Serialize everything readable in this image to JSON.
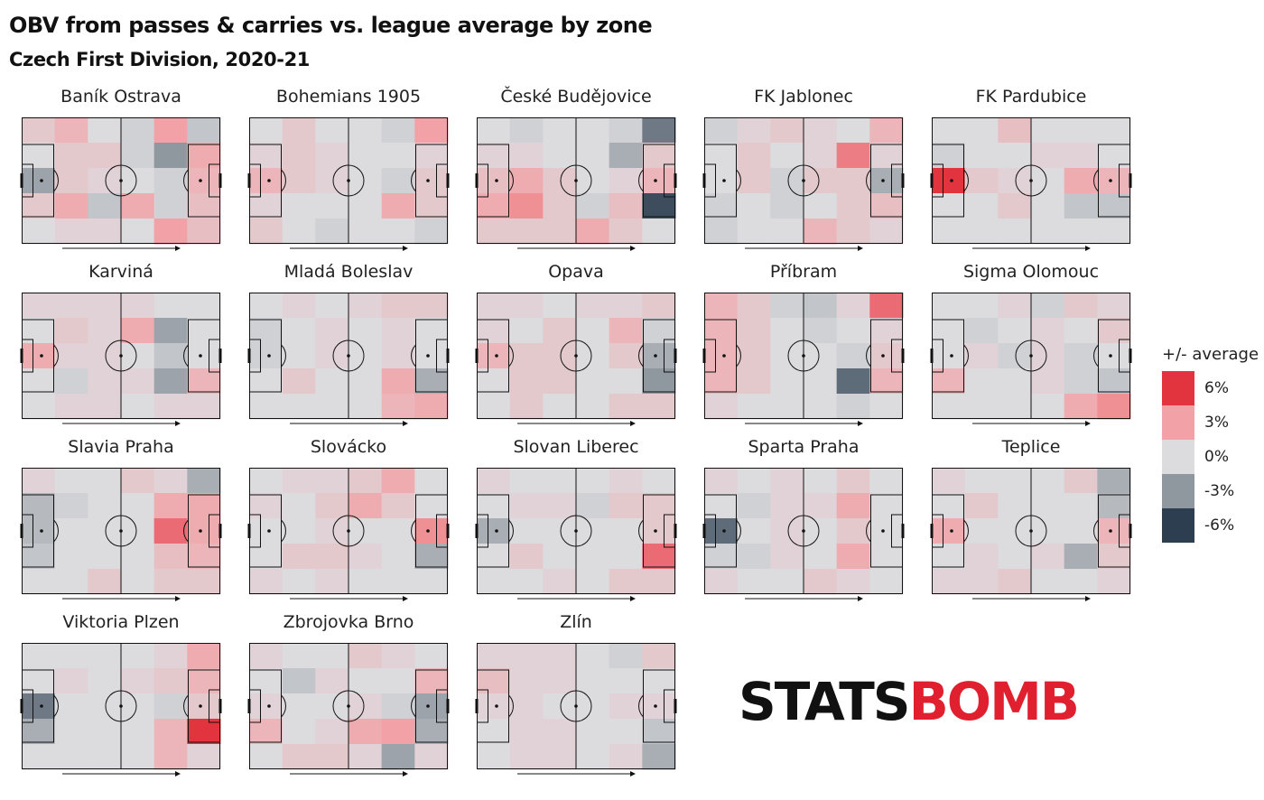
{
  "header": {
    "title": "OBV from passes & carries vs. league average by zone",
    "subtitle": "Czech First Division, 2020-21"
  },
  "legend": {
    "title": "+/- average",
    "items": [
      {
        "label": "6%",
        "value": 0.06,
        "color": "#e2343f"
      },
      {
        "label": "3%",
        "value": 0.03,
        "color": "#f2a2a6"
      },
      {
        "label": "0%",
        "value": 0.0,
        "color": "#dcdcdf"
      },
      {
        "label": "-3%",
        "value": -0.03,
        "color": "#8f979f"
      },
      {
        "label": "-6%",
        "value": -0.06,
        "color": "#2c3e50"
      }
    ]
  },
  "logo": {
    "part1": "STATS",
    "part2": "BOMB"
  },
  "colors": {
    "positive": "#e2343f",
    "neutral": "#dcdcdf",
    "negative": "#2c3e50"
  },
  "chart_data": {
    "type": "heatmap",
    "title": "OBV from passes & carries vs. league average by zone",
    "subtitle": "Czech First Division, 2020-21",
    "zone_grid": {
      "columns": 6,
      "rows": 5
    },
    "value_unit": "percent vs league average",
    "color_range": [
      -6,
      6
    ],
    "teams": [
      {
        "name": "Baník Ostrava",
        "zones": [
          [
            1,
            2,
            0,
            -0.5,
            3,
            -1
          ],
          [
            0,
            1,
            1,
            -0.5,
            -3,
            2.5
          ],
          [
            -2.5,
            1,
            0.5,
            0,
            -0.5,
            2
          ],
          [
            1,
            2.5,
            -1,
            2.5,
            -0.5,
            1.5
          ],
          [
            0,
            0.5,
            0.5,
            0,
            3,
            1.5
          ]
        ]
      },
      {
        "name": "Bohemians 1905",
        "zones": [
          [
            0,
            1,
            0,
            0,
            -0.5,
            3
          ],
          [
            0.5,
            1,
            0.5,
            0,
            0,
            0.5
          ],
          [
            2,
            1,
            0.5,
            0,
            -0.5,
            1
          ],
          [
            0.5,
            0,
            0,
            0,
            2.5,
            1
          ],
          [
            1,
            0,
            -0.5,
            0,
            0,
            -0.5
          ]
        ]
      },
      {
        "name": "České Budějovice",
        "zones": [
          [
            0,
            -0.5,
            0,
            0,
            -0.5,
            -4
          ],
          [
            0.5,
            0.5,
            0,
            0,
            -2,
            1
          ],
          [
            1.5,
            2.5,
            1,
            0,
            0.5,
            2
          ],
          [
            2.5,
            3.5,
            1,
            -0.5,
            1.5,
            -5.5
          ],
          [
            1,
            1,
            1,
            2.5,
            1,
            0
          ]
        ]
      },
      {
        "name": "FK Jablonec",
        "zones": [
          [
            -0.5,
            0.5,
            1,
            0.5,
            0,
            2
          ],
          [
            0,
            1,
            0,
            0.5,
            4,
            0.5
          ],
          [
            0,
            1,
            -0.5,
            1,
            1,
            -2
          ],
          [
            -0.5,
            0,
            -0.5,
            0,
            1,
            1.5
          ],
          [
            -0.5,
            0,
            0,
            2,
            1,
            0.5
          ]
        ]
      },
      {
        "name": "FK Pardubice",
        "zones": [
          [
            0,
            0,
            1.5,
            0,
            0,
            0
          ],
          [
            -0.5,
            0,
            0,
            0.5,
            0.5,
            0
          ],
          [
            6,
            1,
            0.5,
            0,
            2.5,
            2
          ],
          [
            0,
            0,
            1,
            0,
            -1,
            -1
          ],
          [
            0,
            0,
            0,
            0,
            0,
            0
          ]
        ]
      },
      {
        "name": "Karviná",
        "zones": [
          [
            0.5,
            0.5,
            0.5,
            0.5,
            0,
            0
          ],
          [
            0,
            1,
            0.5,
            2.5,
            -2.5,
            0
          ],
          [
            2.5,
            0.5,
            0.5,
            0,
            -1,
            0
          ],
          [
            0,
            -0.5,
            0.5,
            0.5,
            -2.5,
            2
          ],
          [
            0,
            0.5,
            0.5,
            0,
            0.5,
            0.5
          ]
        ]
      },
      {
        "name": "Mladá Boleslav",
        "zones": [
          [
            0,
            0.5,
            0,
            0.5,
            1,
            1
          ],
          [
            -0.5,
            0,
            0.5,
            0,
            0.5,
            0
          ],
          [
            -0.5,
            0,
            0.5,
            0,
            0.5,
            0
          ],
          [
            0,
            1,
            0,
            0,
            2.5,
            -2
          ],
          [
            0,
            0,
            0,
            0,
            2,
            2.5
          ]
        ]
      },
      {
        "name": "Opava",
        "zones": [
          [
            0.5,
            0.5,
            0,
            0.5,
            0.5,
            1
          ],
          [
            0.5,
            0,
            1,
            0,
            2,
            -0.5
          ],
          [
            2,
            1,
            1,
            0,
            1,
            -2
          ],
          [
            0,
            1,
            1,
            0,
            0,
            -3
          ],
          [
            0,
            1,
            0,
            0,
            1,
            1
          ]
        ]
      },
      {
        "name": "Příbram",
        "zones": [
          [
            2,
            1,
            -0.5,
            -1,
            0.5,
            4.5
          ],
          [
            2,
            1,
            0,
            -0.5,
            0,
            0.5
          ],
          [
            2,
            1,
            0,
            0,
            -0.5,
            1
          ],
          [
            2,
            1,
            0,
            0,
            -4.5,
            2
          ],
          [
            0.5,
            0,
            0,
            0,
            -0.5,
            0
          ]
        ]
      },
      {
        "name": "Sigma Olomouc",
        "zones": [
          [
            0,
            0,
            0.5,
            -0.5,
            1,
            0.5
          ],
          [
            0,
            -0.5,
            0,
            0.5,
            0,
            1
          ],
          [
            0,
            0.5,
            -0.5,
            0.5,
            -0.5,
            0
          ],
          [
            2,
            0,
            0,
            0.5,
            -0.5,
            -1
          ],
          [
            0,
            0,
            0,
            0,
            2.5,
            3.5
          ]
        ]
      },
      {
        "name": "Slavia Praha",
        "zones": [
          [
            0.5,
            0,
            0,
            1,
            0.5,
            -2
          ],
          [
            -1.5,
            -0.5,
            0,
            0,
            2.5,
            2.5
          ],
          [
            -1.5,
            0,
            0,
            0,
            4.5,
            2.5
          ],
          [
            -1,
            0,
            0,
            0,
            1.5,
            2
          ],
          [
            0,
            0,
            1,
            0,
            1,
            1
          ]
        ]
      },
      {
        "name": "Slovácko",
        "zones": [
          [
            0,
            0.5,
            0.5,
            1,
            2.5,
            0
          ],
          [
            0.5,
            0,
            1,
            2.5,
            1,
            0
          ],
          [
            0,
            0,
            0.5,
            0,
            0,
            3.5
          ],
          [
            0,
            1,
            1,
            0.5,
            0,
            -2
          ],
          [
            0.5,
            0,
            0.5,
            0,
            0,
            0
          ]
        ]
      },
      {
        "name": "Slovan Liberec",
        "zones": [
          [
            0.5,
            0,
            0,
            0,
            0.5,
            0
          ],
          [
            0,
            0.5,
            0.5,
            -0.5,
            1,
            1
          ],
          [
            -2,
            0,
            0,
            0,
            0,
            1
          ],
          [
            0,
            1,
            0,
            0,
            0,
            4.5
          ],
          [
            0,
            0,
            0.5,
            0,
            1,
            1
          ]
        ]
      },
      {
        "name": "Sparta Praha",
        "zones": [
          [
            0.5,
            0,
            0.5,
            0,
            1,
            0
          ],
          [
            0,
            -0.5,
            0.5,
            0.5,
            2.5,
            0
          ],
          [
            -4.5,
            0,
            0.5,
            0,
            1,
            0
          ],
          [
            -0.5,
            -0.5,
            0.5,
            0,
            2.5,
            0
          ],
          [
            0.5,
            0,
            0,
            1,
            0.5,
            0
          ]
        ]
      },
      {
        "name": "Teplice",
        "zones": [
          [
            0.5,
            0,
            0,
            0,
            1,
            -2
          ],
          [
            0,
            1,
            0,
            0,
            0,
            -1.5
          ],
          [
            2.5,
            0,
            0,
            0,
            0,
            2
          ],
          [
            0,
            0.5,
            0,
            0.5,
            -2,
            1
          ],
          [
            0.5,
            0.5,
            1,
            0,
            0,
            0.5
          ]
        ]
      },
      {
        "name": "Viktoria Plzen",
        "zones": [
          [
            0,
            0,
            0,
            0,
            0.5,
            2.5
          ],
          [
            0,
            0.5,
            0,
            0.5,
            1,
            2
          ],
          [
            -4,
            0,
            0,
            0,
            -0.5,
            1
          ],
          [
            -2,
            0,
            0,
            0,
            2,
            6
          ],
          [
            0,
            0,
            0,
            0,
            2,
            0.5
          ]
        ]
      },
      {
        "name": "Zbrojovka Brno",
        "zones": [
          [
            0.5,
            0,
            0,
            1,
            0.5,
            0
          ],
          [
            0,
            -1,
            0.5,
            0,
            0,
            2
          ],
          [
            0.5,
            0,
            0,
            0.5,
            -0.5,
            -2.5
          ],
          [
            2,
            0,
            0.5,
            2.5,
            3,
            -2
          ],
          [
            0,
            1,
            1,
            0.5,
            -2.5,
            0.5
          ]
        ]
      },
      {
        "name": "Zlín",
        "zones": [
          [
            0.5,
            0.5,
            0.5,
            0,
            -0.5,
            1
          ],
          [
            1.5,
            0.5,
            0.5,
            0,
            0,
            0
          ],
          [
            0.5,
            0.5,
            0,
            0,
            0.5,
            0.5
          ],
          [
            0,
            0.5,
            0.5,
            0,
            0,
            -1
          ],
          [
            0,
            0.5,
            0.5,
            0,
            0.5,
            -2
          ]
        ]
      }
    ]
  }
}
